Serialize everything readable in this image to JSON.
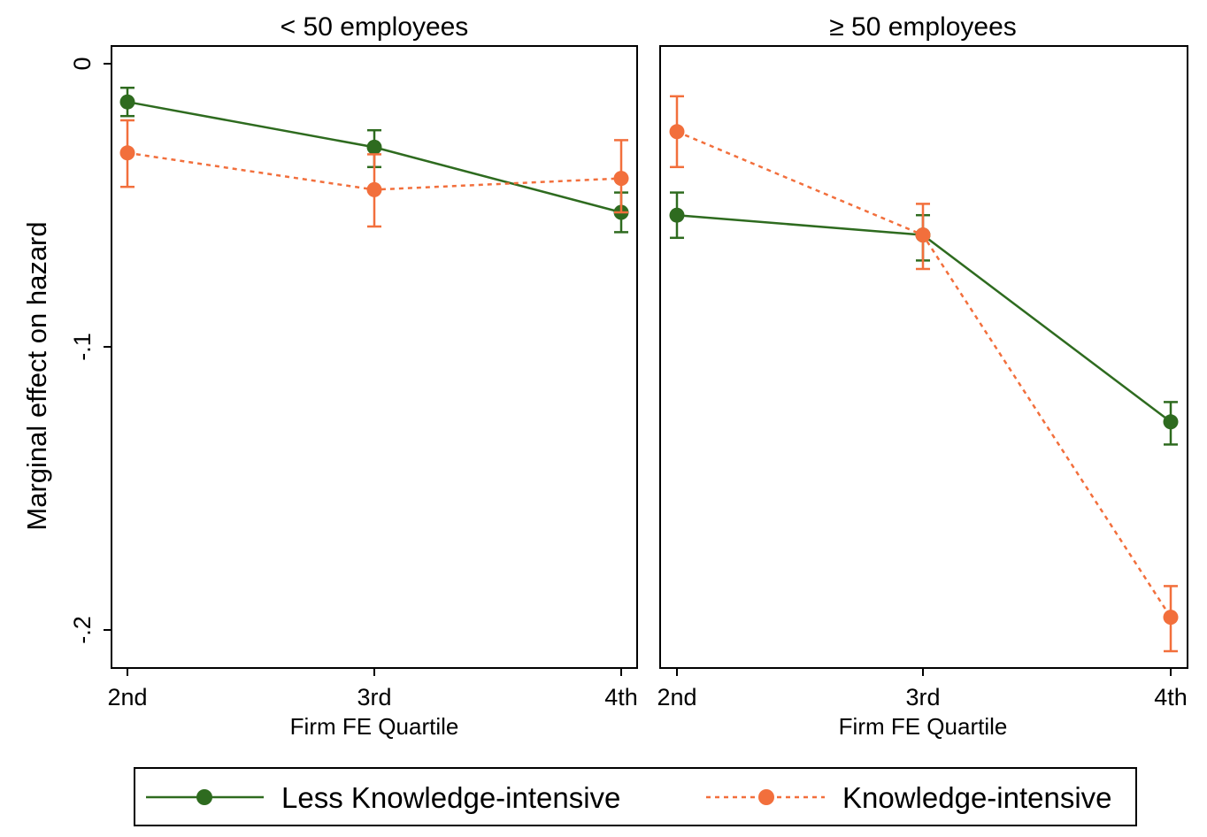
{
  "chart_data": {
    "type": "line",
    "ylabel": "Marginal effect on hazard",
    "ylim": [
      -0.213,
      0.0
    ],
    "yticks": [
      0,
      -0.1,
      -0.2
    ],
    "ytick_labels": [
      "0",
      "-.1",
      "-.2"
    ],
    "categories": [
      "2nd",
      "3rd",
      "4th"
    ],
    "xlabel": "Firm FE Quartile",
    "grid": false,
    "legend": {
      "position": "bottom",
      "entries": [
        "Less Knowledge-intensive",
        "Knowledge-intensive"
      ]
    },
    "colors": {
      "less": "#2e6b1f",
      "knowledge": "#f26f3c"
    },
    "panels": [
      {
        "title": "< 50 employees",
        "series": [
          {
            "name": "Less Knowledge-intensive",
            "style": "solid",
            "color": "#2e6b1f",
            "values": [
              -0.0135,
              -0.0295,
              -0.0525
            ],
            "ci_low": [
              -0.0185,
              -0.0365,
              -0.0595
            ],
            "ci_high": [
              -0.0085,
              -0.0235,
              -0.0455
            ]
          },
          {
            "name": "Knowledge-intensive",
            "style": "dotted",
            "color": "#f26f3c",
            "values": [
              -0.0315,
              -0.0445,
              -0.0405
            ],
            "ci_low": [
              -0.0435,
              -0.0575,
              -0.0525
            ],
            "ci_high": [
              -0.02,
              -0.032,
              -0.027
            ]
          }
        ]
      },
      {
        "title": "≥ 50 employees",
        "series": [
          {
            "name": "Less Knowledge-intensive",
            "style": "solid",
            "color": "#2e6b1f",
            "values": [
              -0.0535,
              -0.0605,
              -0.1265
            ],
            "ci_low": [
              -0.0615,
              -0.0695,
              -0.1345
            ],
            "ci_high": [
              -0.0455,
              -0.0535,
              -0.1195
            ]
          },
          {
            "name": "Knowledge-intensive",
            "style": "dotted",
            "color": "#f26f3c",
            "values": [
              -0.024,
              -0.0605,
              -0.1955
            ],
            "ci_low": [
              -0.0365,
              -0.0725,
              -0.2075
            ],
            "ci_high": [
              -0.0115,
              -0.0495,
              -0.1845
            ]
          }
        ]
      }
    ]
  }
}
